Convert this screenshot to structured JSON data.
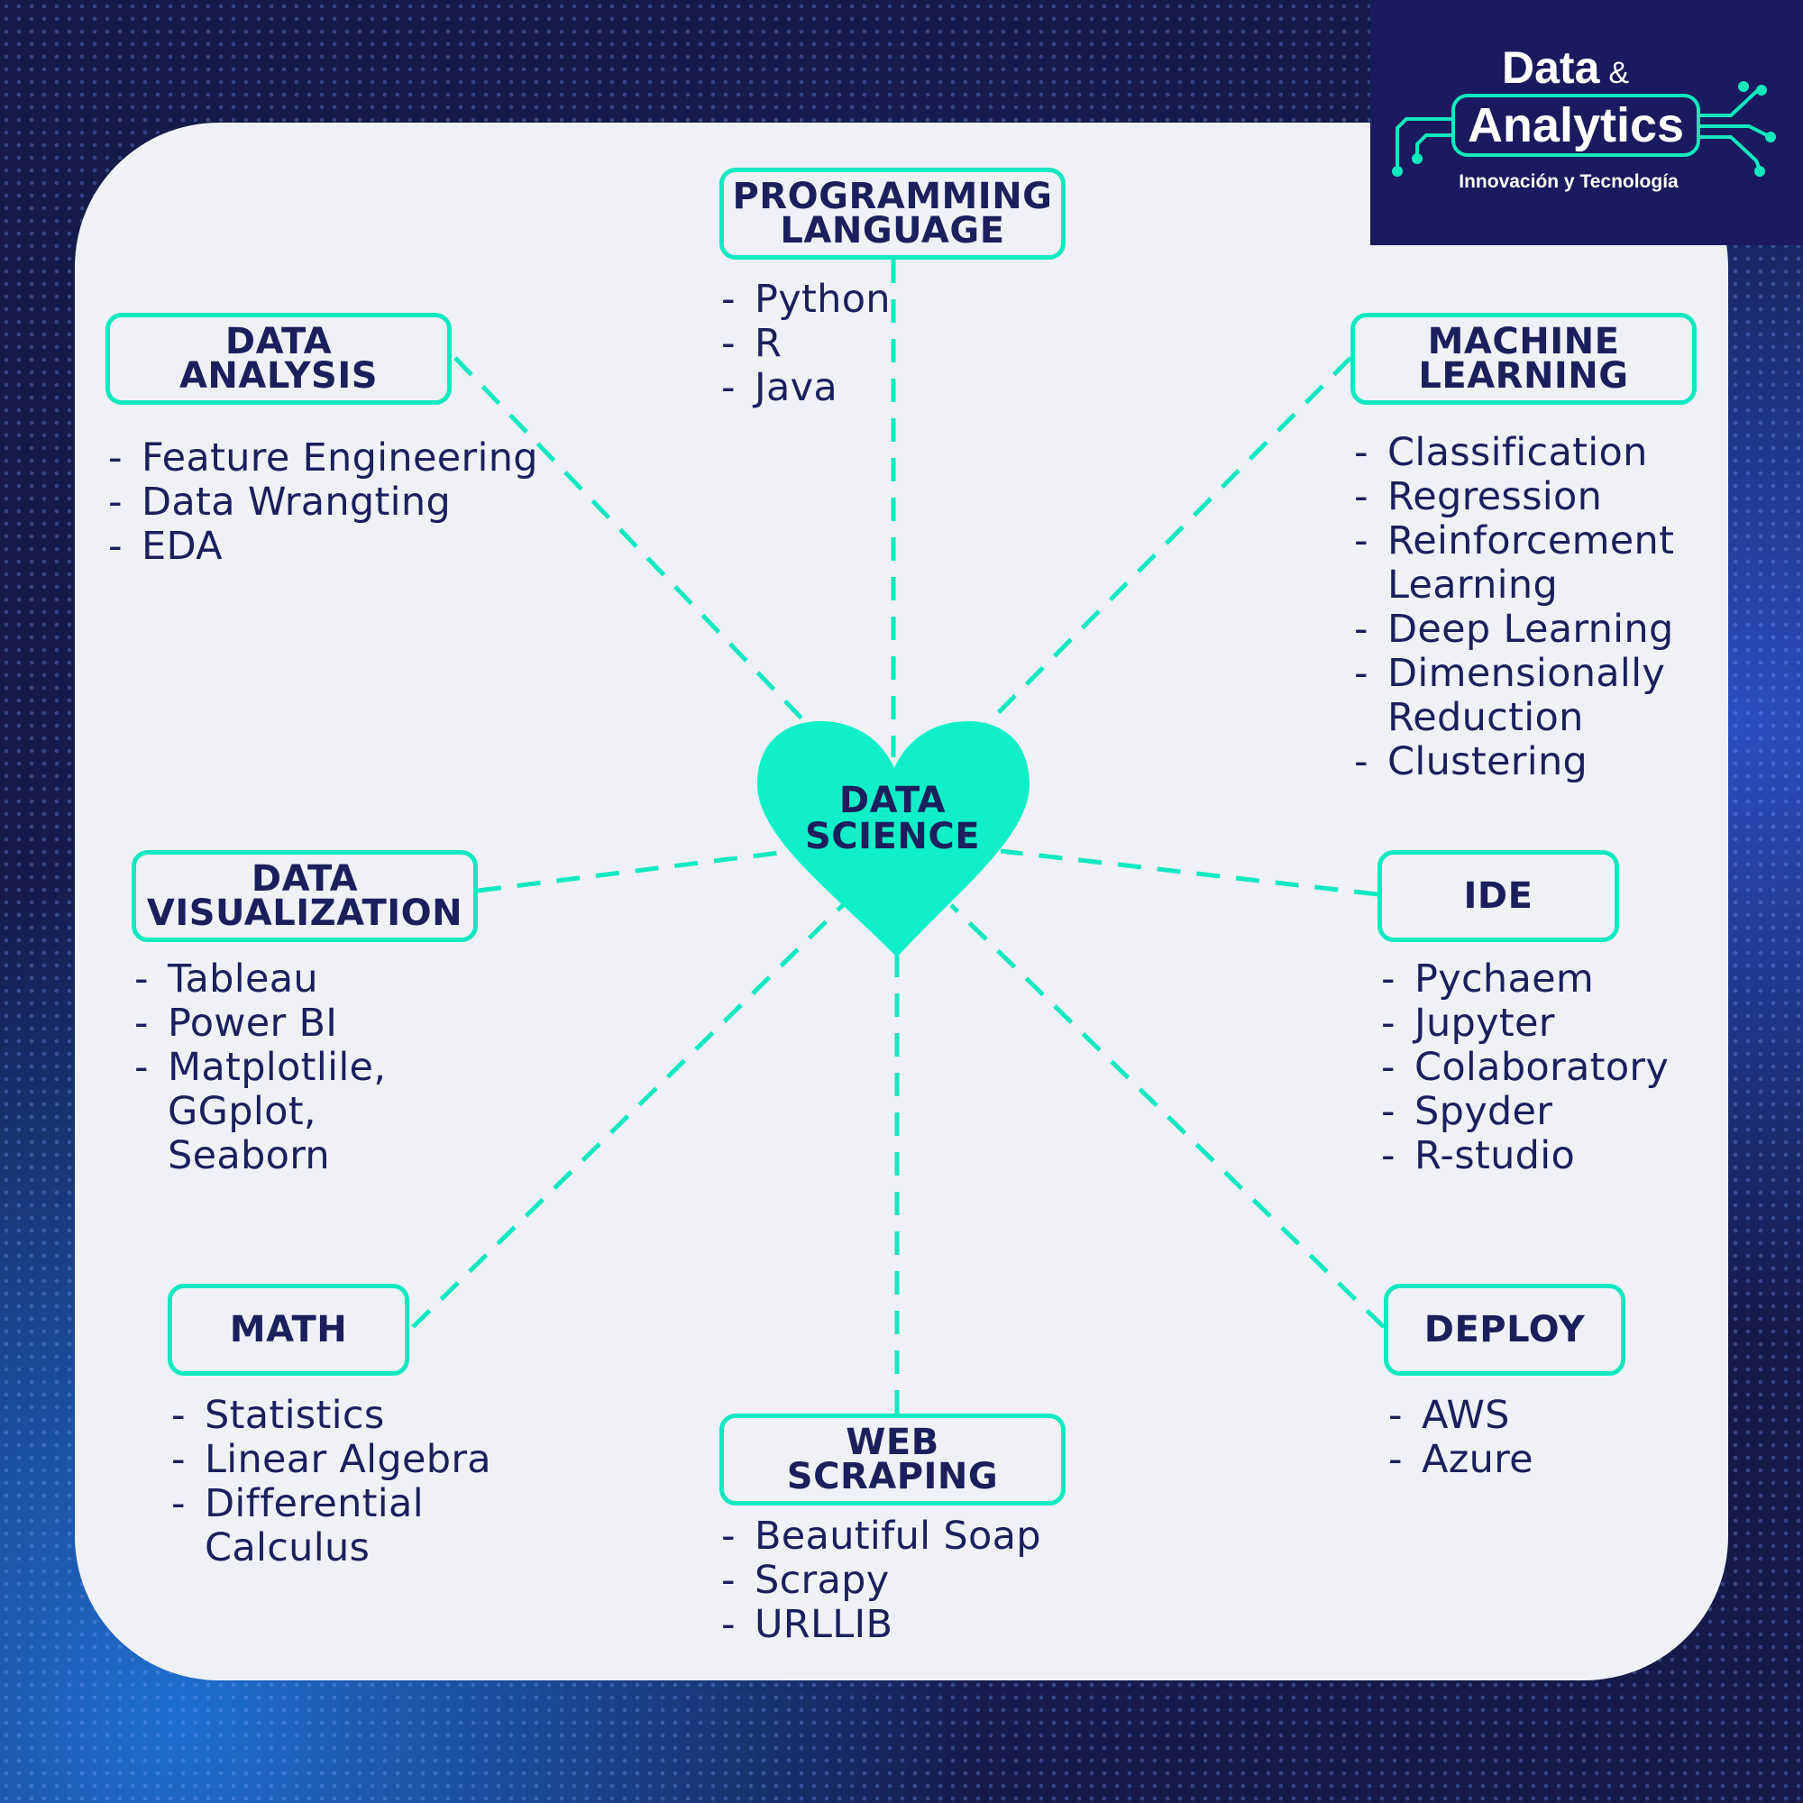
{
  "brand": {
    "line1": "Data",
    "amp": "&",
    "line2": "Analytics",
    "tagline": "Innovación y Tecnología"
  },
  "center": {
    "line1": "DATA",
    "line2": "SCIENCE"
  },
  "colors": {
    "accent": "#10e8c0",
    "text": "#1b1f5c",
    "card": "#f0f1f6",
    "logo_bg": "#1b1a5e"
  },
  "nodes": {
    "programming": {
      "title": [
        "PROGRAMMING",
        "LANGUAGE"
      ],
      "items": [
        "Python",
        "R",
        "Java"
      ]
    },
    "data_analysis": {
      "title": [
        "DATA",
        "ANALYSIS"
      ],
      "items": [
        "Feature Engineering",
        "Data Wrangting",
        "EDA"
      ]
    },
    "machine_learning": {
      "title": [
        "MACHINE",
        "LEARNING"
      ],
      "items": [
        "Classification",
        "Regression",
        "Reinforcement",
        "Learning",
        "Deep Learning",
        "Dimensionally",
        "Reduction",
        "Clustering"
      ]
    },
    "data_visualization": {
      "title": [
        "DATA",
        "VISUALIZATION"
      ],
      "items": [
        "Tableau",
        "Power BI",
        "Matplotlile,",
        "GGplot,",
        "Seaborn"
      ]
    },
    "ide": {
      "title": [
        "IDE"
      ],
      "items": [
        "Pychaem",
        "Jupyter",
        "Colaboratory",
        "Spyder",
        "R-studio"
      ]
    },
    "math": {
      "title": [
        "MATH"
      ],
      "items": [
        "Statistics",
        "Linear Algebra",
        "Differential",
        "Calculus"
      ]
    },
    "web_scraping": {
      "title": [
        "WEB",
        "SCRAPING"
      ],
      "items": [
        "Beautiful Soap",
        "Scrapy",
        "URLLIB"
      ]
    },
    "deploy": {
      "title": [
        "DEPLOY"
      ],
      "items": [
        "AWS",
        "Azure"
      ]
    }
  }
}
